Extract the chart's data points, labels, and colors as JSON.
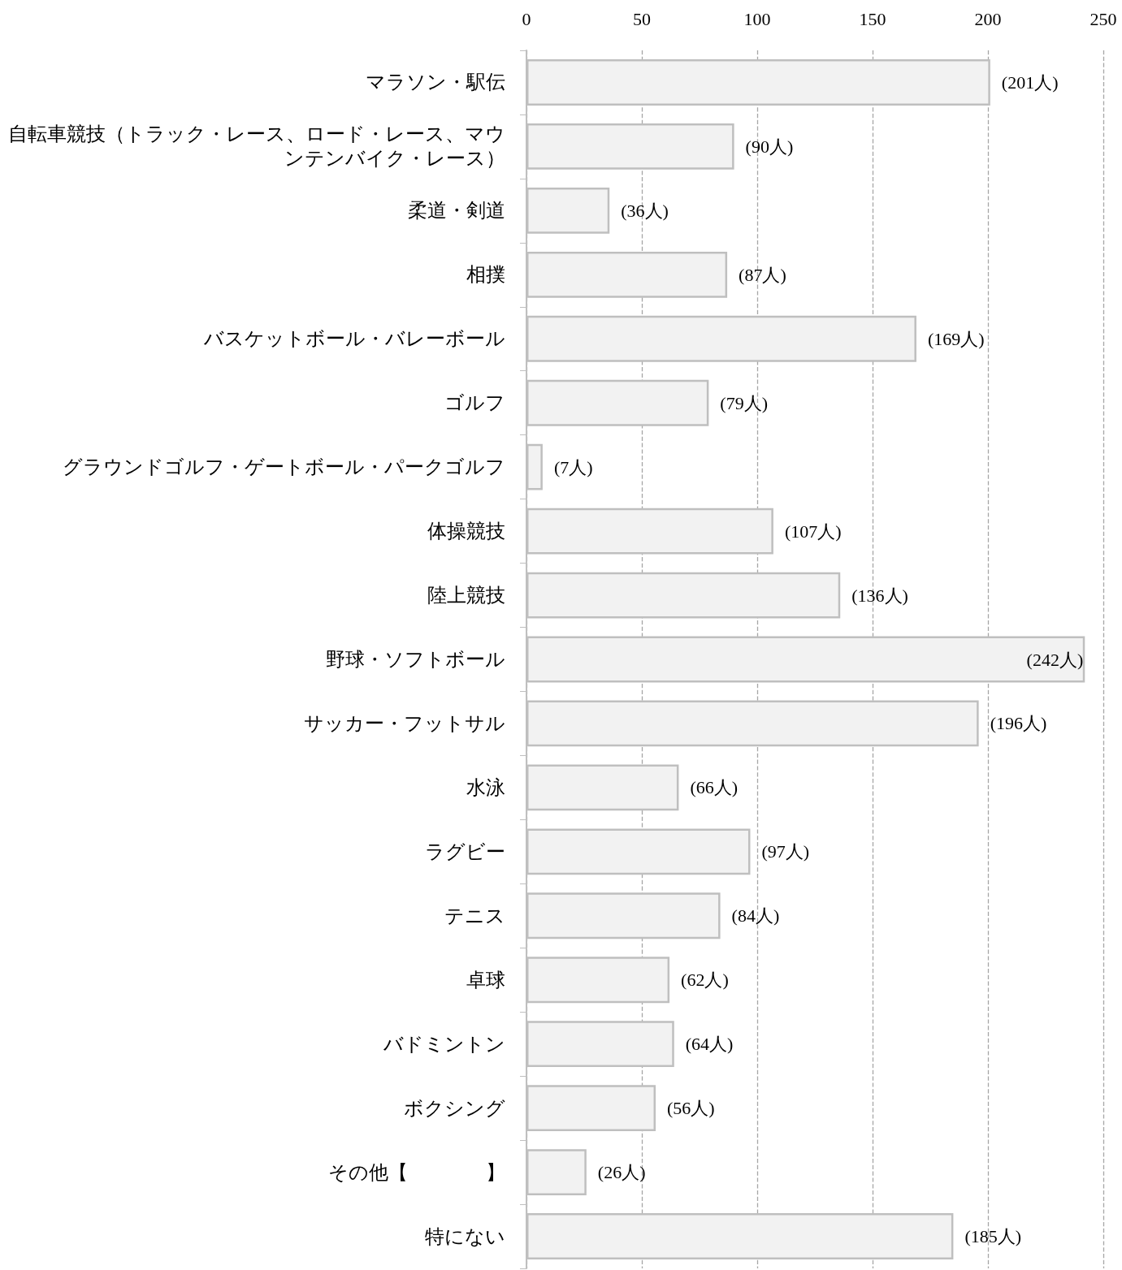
{
  "chart_data": {
    "type": "bar",
    "orientation": "horizontal",
    "categories": [
      "マラソン・駅伝",
      "自転車競技（トラック・レース、ロード・レース、マウンテンバイク・レース）",
      "柔道・剣道",
      "相撲",
      "バスケットボール・バレーボール",
      "ゴルフ",
      "グラウンドゴルフ・ゲートボール・パークゴルフ",
      "体操競技",
      "陸上競技",
      "野球・ソフトボール",
      "サッカー・フットサル",
      "水泳",
      "ラグビー",
      "テニス",
      "卓球",
      "バドミントン",
      "ボクシング",
      "その他【　　　　】",
      "特にない"
    ],
    "values": [
      201,
      90,
      36,
      87,
      169,
      79,
      7,
      107,
      136,
      242,
      196,
      66,
      97,
      84,
      62,
      64,
      56,
      26,
      185
    ],
    "value_labels": [
      "(201人)",
      "(90人)",
      "(36人)",
      "(87人)",
      "(169人)",
      "(79人)",
      "(7人)",
      "(107人)",
      "(136人)",
      "(242人)",
      "(196人)",
      "(66人)",
      "(97人)",
      "(84人)",
      "(62人)",
      "(64人)",
      "(56人)",
      "(26人)",
      "(185人)"
    ],
    "color": "#f2f2f2",
    "xlim": [
      0,
      250
    ],
    "xticks": [
      0,
      50,
      100,
      150,
      200,
      250
    ],
    "grid": "x"
  }
}
